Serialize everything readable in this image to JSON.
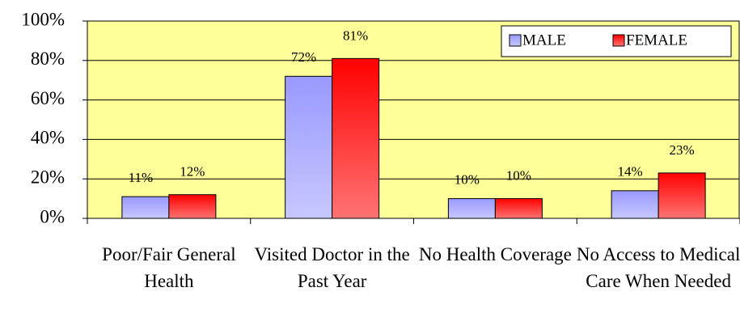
{
  "chart_data": {
    "type": "bar",
    "categories": [
      "Poor/Fair General Health",
      "Visited Doctor in the Past Year",
      "No Health Coverage",
      "No Access to Medical Care When Needed"
    ],
    "series": [
      {
        "name": "MALE",
        "color": "#9999ff",
        "values": [
          11,
          72,
          10,
          14
        ],
        "value_labels": [
          "11%",
          "72%",
          "10%",
          "14%"
        ]
      },
      {
        "name": "FEMALE",
        "color": "#ff0000",
        "values": [
          12,
          81,
          10,
          23
        ],
        "value_labels": [
          "12%",
          "81%",
          "10%",
          "23%"
        ]
      }
    ],
    "ylim": [
      0,
      100
    ],
    "yticks": [
      {
        "value": 0,
        "label": "0%"
      },
      {
        "value": 20,
        "label": "20%"
      },
      {
        "value": 40,
        "label": "40%"
      },
      {
        "value": 60,
        "label": "60%"
      },
      {
        "value": 80,
        "label": "80%"
      },
      {
        "value": 100,
        "label": "100%"
      }
    ],
    "grid": true,
    "legend": "top-right",
    "plot_background": "#ffff99"
  }
}
